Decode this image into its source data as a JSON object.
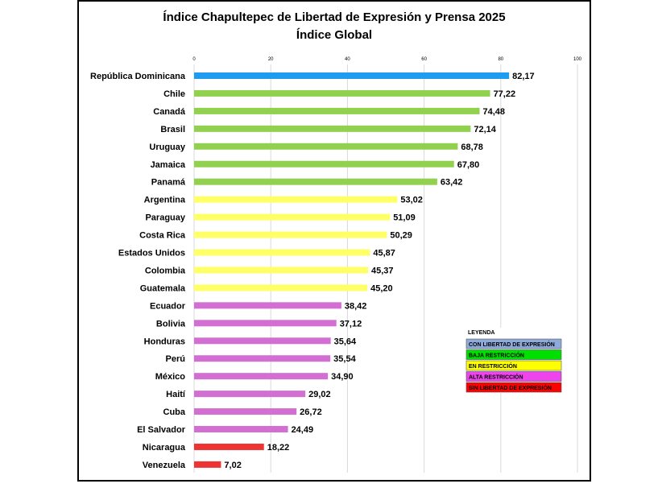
{
  "chart_data": {
    "type": "bar",
    "orientation": "horizontal",
    "title": "Índice Chapultepec de Libertad de Expresión y Prensa 2025",
    "subtitle": "Índice Global",
    "xlim": [
      0,
      100
    ],
    "ticks": [
      "0",
      "20",
      "40",
      "60",
      "80",
      "100"
    ],
    "grid": true,
    "categories": [
      "República Dominicana",
      "Chile",
      "Canadá",
      "Brasil",
      "Uruguay",
      "Jamaica",
      "Panamá",
      "Argentina",
      "Paraguay",
      "Costa Rica",
      "Estados Unidos",
      "Colombia",
      "Guatemala",
      "Ecuador",
      "Bolivia",
      "Honduras",
      "Perú",
      "México",
      "Haití",
      "Cuba",
      "El Salvador",
      "Nicaragua",
      "Venezuela"
    ],
    "values": [
      82.17,
      77.22,
      74.48,
      72.14,
      68.78,
      67.8,
      63.42,
      53.02,
      51.09,
      50.29,
      45.87,
      45.37,
      45.2,
      38.42,
      37.12,
      35.64,
      35.54,
      34.9,
      29.02,
      26.72,
      24.49,
      18.22,
      7.02
    ],
    "value_labels": [
      "82,17",
      "77,22",
      "74,48",
      "72,14",
      "68,78",
      "67,80",
      "63,42",
      "53,02",
      "51,09",
      "50,29",
      "45,87",
      "45,37",
      "45,20",
      "38,42",
      "37,12",
      "35,64",
      "35,54",
      "34,90",
      "29,02",
      "26,72",
      "24,49",
      "18,22",
      "7,02"
    ],
    "group": [
      "con",
      "baja",
      "baja",
      "baja",
      "baja",
      "baja",
      "baja",
      "en",
      "en",
      "en",
      "en",
      "en",
      "en",
      "alta",
      "alta",
      "alta",
      "alta",
      "alta",
      "alta",
      "alta",
      "alta",
      "sin",
      "sin"
    ],
    "group_colors": {
      "con": "#1f9bf0",
      "baja": "#92d050",
      "en": "#ffff66",
      "alta": "#d36fd3",
      "sin": "#ee3333"
    },
    "legend": {
      "title": "LEYENDA",
      "position": "right",
      "entries": [
        {
          "label": "CON LIBERTAD DE EXPRESIÓN",
          "color": "#8eaadb"
        },
        {
          "label": "BAJA RESTRICCIÓN",
          "color": "#00e000"
        },
        {
          "label": "EN RESTRICCIÓN",
          "color": "#ffff00"
        },
        {
          "label": "ALTA RESTRICCIÓN",
          "color": "#ee44ee"
        },
        {
          "label": "SIN LIBERTAD DE EXPRESIÓN",
          "color": "#ff0000"
        }
      ]
    }
  }
}
